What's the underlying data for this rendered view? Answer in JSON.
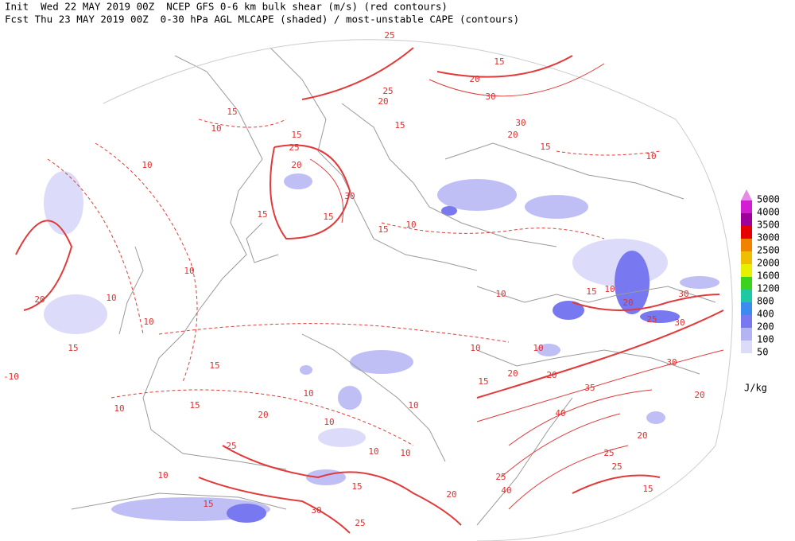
{
  "header": {
    "line1": "Init  Wed 22 MAY 2019 00Z  NCEP GFS 0-6 km bulk shear (m/s) (red contours)",
    "line2": "Fcst Thu 23 MAY 2019 00Z  0-30 hPa AGL MLCAPE (shaded) / most-unstable CAPE (contours)"
  },
  "contour_labels": [
    25,
    15,
    20,
    30,
    25,
    20,
    15,
    30,
    20,
    15,
    10,
    15,
    10,
    15,
    25,
    20,
    10,
    30,
    15,
    15,
    15,
    10,
    10,
    20,
    15,
    -10,
    10,
    10,
    15,
    10,
    20,
    25,
    30,
    30,
    10,
    20,
    20,
    35,
    40,
    30,
    20,
    20,
    25,
    25,
    15,
    25,
    40,
    20,
    15,
    30,
    25,
    15,
    10,
    25,
    20,
    10,
    10,
    10,
    15,
    15,
    10,
    10,
    10,
    15,
    10,
    10
  ],
  "legend": {
    "unit": "J/kg",
    "items": [
      {
        "value": 5000,
        "color": "#e68ae6"
      },
      {
        "value": 4000,
        "color": "#d21ed2"
      },
      {
        "value": 3500,
        "color": "#a0009a"
      },
      {
        "value": 3000,
        "color": "#e60000"
      },
      {
        "value": 2500,
        "color": "#f08200"
      },
      {
        "value": 2000,
        "color": "#f0be00"
      },
      {
        "value": 1600,
        "color": "#e6f000"
      },
      {
        "value": 1200,
        "color": "#3cd21e"
      },
      {
        "value": 800,
        "color": "#1ec8a0"
      },
      {
        "value": 400,
        "color": "#3c8cf0"
      },
      {
        "value": 200,
        "color": "#7878f0"
      },
      {
        "value": 100,
        "color": "#b4b4f5"
      },
      {
        "value": 50,
        "color": "#dcdcfa"
      }
    ]
  }
}
